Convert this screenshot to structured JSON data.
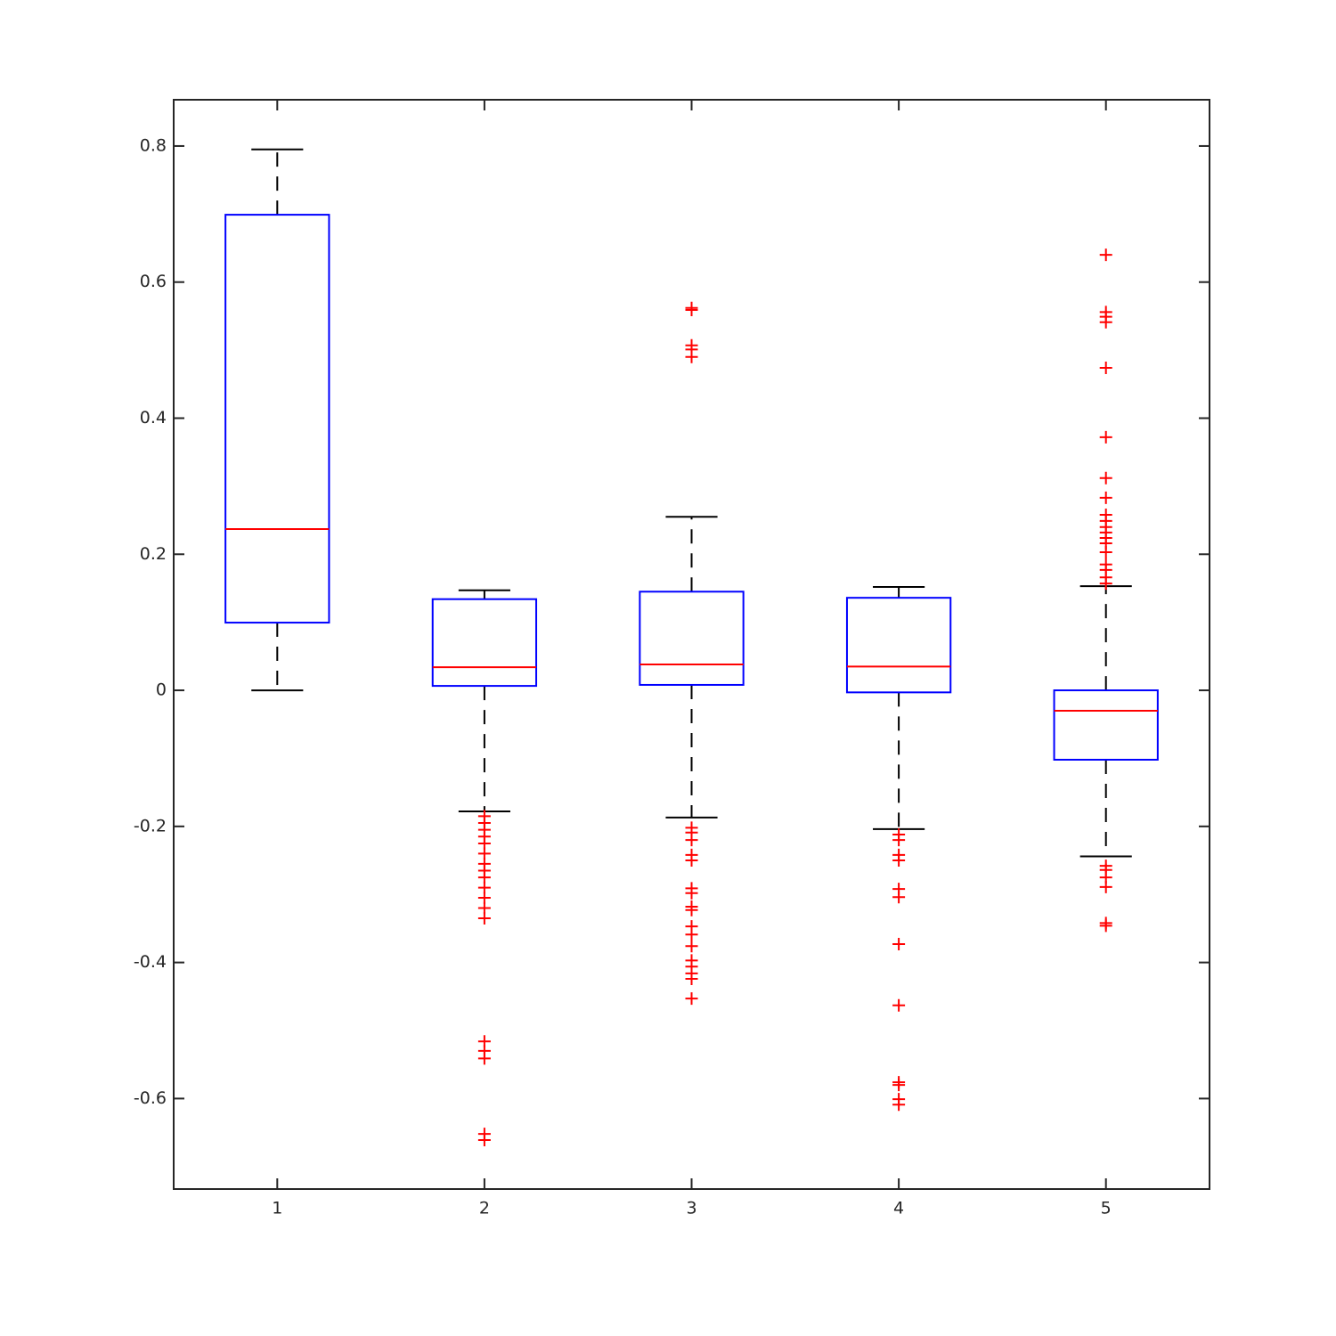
{
  "chart_data": {
    "type": "box",
    "categories": [
      "1",
      "2",
      "3",
      "4",
      "5"
    ],
    "xlim": [
      0.5,
      5.5
    ],
    "ylim": [
      -0.733,
      0.868
    ],
    "yticks": [
      -0.6,
      -0.4,
      -0.2,
      0,
      0.2,
      0.4,
      0.6,
      0.8
    ],
    "box_color": "#0000ff",
    "median_color": "#ff0000",
    "whisker_color": "#000000",
    "outlier_color": "#ff0000",
    "boxes": [
      {
        "whisker_low": 0,
        "q1": 0.0995,
        "median": 0.237,
        "q3": 0.699,
        "whisker_high": 0.795,
        "outliers": []
      },
      {
        "whisker_low": -0.178,
        "q1": 0.0065,
        "median": 0.034,
        "q3": 0.134,
        "whisker_high": 0.147,
        "outliers": [
          -0.185,
          -0.195,
          -0.205,
          -0.215,
          -0.225,
          -0.24,
          -0.255,
          -0.265,
          -0.275,
          -0.29,
          -0.305,
          -0.32,
          -0.335,
          -0.516,
          -0.53,
          -0.541,
          -0.652,
          -0.661
        ]
      },
      {
        "whisker_low": -0.187,
        "q1": 0.008,
        "median": 0.038,
        "q3": 0.145,
        "whisker_high": 0.255,
        "outliers": [
          0.562,
          0.559,
          0.507,
          0.501,
          0.49,
          -0.202,
          -0.209,
          -0.22,
          -0.242,
          -0.25,
          -0.291,
          -0.298,
          -0.318,
          -0.323,
          -0.347,
          -0.359,
          -0.376,
          -0.397,
          -0.406,
          -0.416,
          -0.424,
          -0.453
        ]
      },
      {
        "whisker_low": -0.204,
        "q1": -0.003,
        "median": 0.035,
        "q3": 0.136,
        "whisker_high": 0.152,
        "outliers": [
          -0.212,
          -0.22,
          -0.242,
          -0.25,
          -0.292,
          -0.304,
          -0.373,
          -0.463,
          -0.576,
          -0.58,
          -0.601,
          -0.609
        ]
      },
      {
        "whisker_low": -0.244,
        "q1": -0.102,
        "median": -0.03,
        "q3": 0,
        "whisker_high": 0.153,
        "outliers": [
          0.64,
          0.556,
          0.549,
          0.541,
          0.474,
          0.372,
          0.312,
          0.283,
          0.258,
          0.249,
          0.24,
          0.232,
          0.224,
          0.216,
          0.203,
          0.185,
          0.177,
          0.166,
          0.157,
          -0.258,
          -0.264,
          -0.275,
          -0.289,
          -0.342,
          -0.346
        ]
      }
    ]
  }
}
